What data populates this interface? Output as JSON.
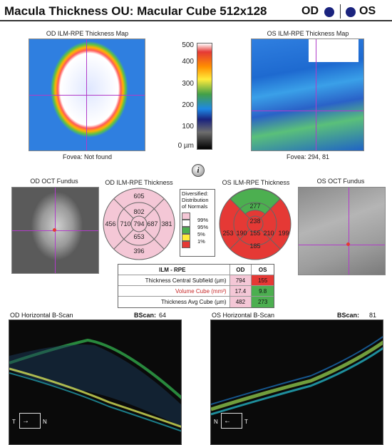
{
  "header": {
    "title": "Macula Thickness OU: Macular Cube 512x128",
    "od": "OD",
    "os": "OS"
  },
  "od_map": {
    "title": "OD ILM-RPE Thickness Map",
    "fovea": "Fovea: Not found"
  },
  "os_map": {
    "title": "OS ILM-RPE Thickness Map",
    "fovea": "Fovea: 294, 81"
  },
  "scale": {
    "ticks": [
      "500",
      "400",
      "300",
      "200",
      "100",
      "0 µm"
    ]
  },
  "od_fundus": {
    "title": "OD OCT Fundus"
  },
  "os_fundus": {
    "title": "OS OCT Fundus"
  },
  "od_thickness": {
    "title": "OD ILM-RPE Thickness",
    "values": {
      "top": "605",
      "inner_top": "802",
      "left": "456",
      "inner_left": "710",
      "center": "794",
      "inner_right": "687",
      "right": "381",
      "inner_bottom": "653",
      "bottom": "396"
    }
  },
  "os_thickness": {
    "title": "OS ILM-RPE Thickness",
    "values": {
      "top": "277",
      "inner_top": "238",
      "left": "253",
      "inner_left": "190",
      "center": "155",
      "inner_right": "210",
      "right": "199",
      "inner_bottom": "185"
    }
  },
  "legend": {
    "title": "Diversified: Distribution of Normals",
    "items": [
      "99%",
      "95%",
      "5%",
      "1%"
    ],
    "colors": [
      "#f4c7d6",
      "#ffffff",
      "#4caf50",
      "#ffeb3b",
      "#e53935"
    ]
  },
  "table": {
    "header": [
      "ILM - RPE",
      "OD",
      "OS"
    ],
    "rows": [
      {
        "label": "Thickness Central Subfield (µm)",
        "od": "794",
        "os": "155"
      },
      {
        "label": "Volume Cube (mm³)",
        "od": "17.4",
        "os": "9.8"
      },
      {
        "label": "Thickness Avg Cube (µm)",
        "od": "482",
        "os": "273"
      }
    ]
  },
  "od_bscan": {
    "title": "OD Horizontal B-Scan",
    "bscan_label": "BScan:",
    "bscan_value": "64",
    "orient_left": "T",
    "orient_right": "N"
  },
  "os_bscan": {
    "title": "OS Horizontal B-Scan",
    "bscan_label": "BScan:",
    "bscan_value": "81",
    "orient_left": "N",
    "orient_right": "T"
  },
  "info_icon": "i"
}
